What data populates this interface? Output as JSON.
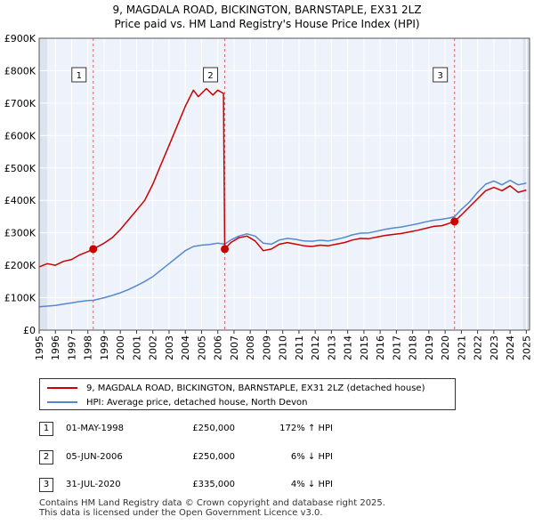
{
  "chart_data": {
    "type": "line",
    "title": "9, MAGDALA ROAD, BICKINGTON, BARNSTAPLE, EX31 2LZ",
    "subtitle": "Price paid vs. HM Land Registry's House Price Index (HPI)",
    "xlim": [
      1995,
      2025.2
    ],
    "ylim": [
      0,
      900000
    ],
    "y_ticks": [
      {
        "value": 0,
        "label": "£0"
      },
      {
        "value": 100000,
        "label": "£100K"
      },
      {
        "value": 200000,
        "label": "£200K"
      },
      {
        "value": 300000,
        "label": "£300K"
      },
      {
        "value": 400000,
        "label": "£400K"
      },
      {
        "value": 500000,
        "label": "£500K"
      },
      {
        "value": 600000,
        "label": "£600K"
      },
      {
        "value": 700000,
        "label": "£700K"
      },
      {
        "value": 800000,
        "label": "£800K"
      },
      {
        "value": 900000,
        "label": "£900K"
      }
    ],
    "x_ticks": [
      "1995",
      "1996",
      "1997",
      "1998",
      "1999",
      "2000",
      "2001",
      "2002",
      "2003",
      "2004",
      "2005",
      "2006",
      "2007",
      "2008",
      "2009",
      "2010",
      "2011",
      "2012",
      "2013",
      "2014",
      "2015",
      "2016",
      "2017",
      "2018",
      "2019",
      "2020",
      "2021",
      "2022",
      "2023",
      "2024",
      "2025"
    ],
    "grid": true,
    "series": [
      {
        "name": "9, MAGDALA ROAD, BICKINGTON, BARNSTAPLE, EX31 2LZ (detached house)",
        "color": "#cc0000",
        "points": [
          [
            1995.0,
            195000
          ],
          [
            1995.5,
            205000
          ],
          [
            1996.0,
            200000
          ],
          [
            1996.5,
            212000
          ],
          [
            1997.0,
            218000
          ],
          [
            1997.5,
            232000
          ],
          [
            1998.0,
            242000
          ],
          [
            1998.33,
            250000
          ],
          [
            1999.0,
            268000
          ],
          [
            1999.5,
            285000
          ],
          [
            2000.0,
            310000
          ],
          [
            2000.5,
            340000
          ],
          [
            2001.0,
            370000
          ],
          [
            2001.5,
            400000
          ],
          [
            2002.0,
            450000
          ],
          [
            2002.5,
            510000
          ],
          [
            2003.0,
            570000
          ],
          [
            2003.5,
            630000
          ],
          [
            2004.0,
            690000
          ],
          [
            2004.5,
            740000
          ],
          [
            2004.8,
            720000
          ],
          [
            2005.3,
            745000
          ],
          [
            2005.7,
            725000
          ],
          [
            2006.0,
            740000
          ],
          [
            2006.35,
            730000
          ],
          [
            2006.43,
            250000
          ],
          [
            2006.8,
            270000
          ],
          [
            2007.3,
            285000
          ],
          [
            2007.8,
            290000
          ],
          [
            2008.3,
            275000
          ],
          [
            2008.8,
            245000
          ],
          [
            2009.3,
            250000
          ],
          [
            2009.8,
            265000
          ],
          [
            2010.3,
            270000
          ],
          [
            2010.8,
            265000
          ],
          [
            2011.3,
            260000
          ],
          [
            2011.8,
            258000
          ],
          [
            2012.3,
            262000
          ],
          [
            2012.8,
            260000
          ],
          [
            2013.3,
            265000
          ],
          [
            2013.8,
            270000
          ],
          [
            2014.3,
            278000
          ],
          [
            2014.8,
            283000
          ],
          [
            2015.3,
            282000
          ],
          [
            2015.8,
            287000
          ],
          [
            2016.3,
            292000
          ],
          [
            2016.8,
            295000
          ],
          [
            2017.3,
            298000
          ],
          [
            2017.8,
            303000
          ],
          [
            2018.3,
            308000
          ],
          [
            2018.8,
            314000
          ],
          [
            2019.3,
            320000
          ],
          [
            2019.8,
            322000
          ],
          [
            2020.3,
            330000
          ],
          [
            2020.58,
            335000
          ],
          [
            2021.0,
            355000
          ],
          [
            2021.5,
            380000
          ],
          [
            2022.0,
            405000
          ],
          [
            2022.5,
            430000
          ],
          [
            2023.0,
            440000
          ],
          [
            2023.5,
            430000
          ],
          [
            2024.0,
            445000
          ],
          [
            2024.5,
            425000
          ],
          [
            2025.0,
            432000
          ]
        ]
      },
      {
        "name": "HPI: Average price, detached house, North Devon",
        "color": "#5588cc",
        "points": [
          [
            1995.0,
            72000
          ],
          [
            1995.5,
            74000
          ],
          [
            1996.0,
            76000
          ],
          [
            1996.5,
            80000
          ],
          [
            1997.0,
            84000
          ],
          [
            1997.5,
            88000
          ],
          [
            1998.0,
            91000
          ],
          [
            1998.33,
            92000
          ],
          [
            1999.0,
            100000
          ],
          [
            1999.5,
            107000
          ],
          [
            2000.0,
            115000
          ],
          [
            2000.5,
            125000
          ],
          [
            2001.0,
            137000
          ],
          [
            2001.5,
            150000
          ],
          [
            2002.0,
            165000
          ],
          [
            2002.5,
            185000
          ],
          [
            2003.0,
            205000
          ],
          [
            2003.5,
            225000
          ],
          [
            2004.0,
            245000
          ],
          [
            2004.5,
            258000
          ],
          [
            2005.0,
            262000
          ],
          [
            2005.5,
            264000
          ],
          [
            2006.0,
            268000
          ],
          [
            2006.43,
            265000
          ],
          [
            2006.8,
            278000
          ],
          [
            2007.3,
            290000
          ],
          [
            2007.8,
            297000
          ],
          [
            2008.3,
            290000
          ],
          [
            2008.8,
            268000
          ],
          [
            2009.3,
            265000
          ],
          [
            2009.8,
            278000
          ],
          [
            2010.3,
            283000
          ],
          [
            2010.8,
            280000
          ],
          [
            2011.3,
            275000
          ],
          [
            2011.8,
            274000
          ],
          [
            2012.3,
            277000
          ],
          [
            2012.8,
            275000
          ],
          [
            2013.3,
            280000
          ],
          [
            2013.8,
            286000
          ],
          [
            2014.3,
            294000
          ],
          [
            2014.8,
            299000
          ],
          [
            2015.3,
            300000
          ],
          [
            2015.8,
            305000
          ],
          [
            2016.3,
            311000
          ],
          [
            2016.8,
            315000
          ],
          [
            2017.3,
            318000
          ],
          [
            2017.8,
            323000
          ],
          [
            2018.3,
            328000
          ],
          [
            2018.8,
            334000
          ],
          [
            2019.3,
            339000
          ],
          [
            2019.8,
            342000
          ],
          [
            2020.3,
            346000
          ],
          [
            2020.58,
            350000
          ],
          [
            2021.0,
            372000
          ],
          [
            2021.5,
            395000
          ],
          [
            2022.0,
            425000
          ],
          [
            2022.5,
            450000
          ],
          [
            2023.0,
            460000
          ],
          [
            2023.5,
            448000
          ],
          [
            2024.0,
            462000
          ],
          [
            2024.5,
            448000
          ],
          [
            2025.0,
            453000
          ]
        ]
      }
    ],
    "sales": [
      {
        "label": "1",
        "x": 1998.33,
        "y": 250000
      },
      {
        "label": "2",
        "x": 2006.43,
        "y": 250000
      },
      {
        "label": "3",
        "x": 2020.58,
        "y": 335000
      }
    ],
    "shaded_spans": [
      [
        1995.0,
        1995.5
      ],
      [
        2024.8,
        2025.2
      ]
    ]
  },
  "legend": {
    "items": [
      {
        "label": "9, MAGDALA ROAD, BICKINGTON, BARNSTAPLE, EX31 2LZ (detached house)",
        "color": "#cc0000"
      },
      {
        "label": "HPI: Average price, detached house, North Devon",
        "color": "#5588cc"
      }
    ]
  },
  "transactions": [
    {
      "num": "1",
      "date": "01-MAY-1998",
      "price": "£250,000",
      "hpi": "172% ↑ HPI"
    },
    {
      "num": "2",
      "date": "05-JUN-2006",
      "price": "£250,000",
      "hpi": "6% ↓ HPI"
    },
    {
      "num": "3",
      "date": "31-JUL-2020",
      "price": "£335,000",
      "hpi": "4% ↓ HPI"
    }
  ],
  "footer": {
    "line1": "Contains HM Land Registry data © Crown copyright and database right 2025.",
    "line2": "This data is licensed under the Open Government Licence v3.0."
  }
}
